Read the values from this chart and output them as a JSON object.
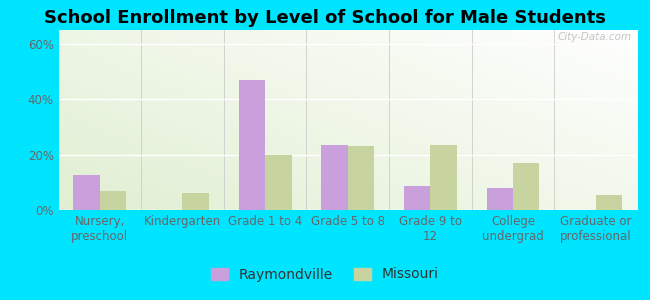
{
  "title": "School Enrollment by Level of School for Male Students",
  "categories": [
    "Nursery,\npreschool",
    "Kindergarten",
    "Grade 1 to 4",
    "Grade 5 to 8",
    "Grade 9 to\n12",
    "College\nundergrad",
    "Graduate or\nprofessional"
  ],
  "raymondville": [
    12.5,
    0,
    47,
    23.5,
    8.5,
    8.0,
    0
  ],
  "missouri": [
    7.0,
    6.0,
    20.0,
    23.0,
    23.5,
    17.0,
    5.5
  ],
  "raymondville_color": "#c9a0dc",
  "missouri_color": "#c8d4a0",
  "plot_bg_color": "#e8f2e0",
  "outer_bg": "#00e5ff",
  "ylim": [
    0,
    65
  ],
  "yticks": [
    0,
    20,
    40,
    60
  ],
  "ytick_labels": [
    "0%",
    "20%",
    "40%",
    "60%"
  ],
  "title_fontsize": 13,
  "legend_fontsize": 10,
  "tick_fontsize": 8.5,
  "bar_width": 0.32,
  "watermark": "City-Data.com"
}
